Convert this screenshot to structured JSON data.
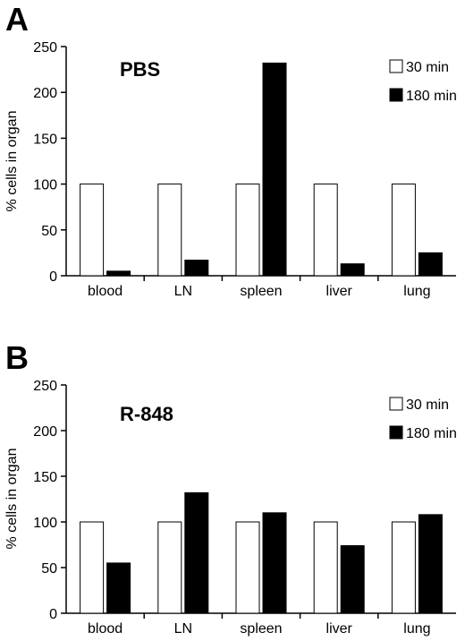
{
  "chart_data": [
    {
      "panel": "A",
      "type": "bar",
      "title": "PBS",
      "ylabel": "% cells in organ",
      "xlabel": "",
      "ylim": [
        0,
        250
      ],
      "yticks": [
        0,
        50,
        100,
        150,
        200,
        250
      ],
      "categories": [
        "blood",
        "LN",
        "spleen",
        "liver",
        "lung"
      ],
      "series": [
        {
          "name": "30 min",
          "color": "#ffffff",
          "values": [
            100,
            100,
            100,
            100,
            100
          ]
        },
        {
          "name": "180 min",
          "color": "#000000",
          "values": [
            5,
            17,
            232,
            13,
            25
          ]
        }
      ],
      "grid": false,
      "legend_position": "top-right"
    },
    {
      "panel": "B",
      "type": "bar",
      "title": "R-848",
      "ylabel": "% cells in organ",
      "xlabel": "",
      "ylim": [
        0,
        250
      ],
      "yticks": [
        0,
        50,
        100,
        150,
        200,
        250
      ],
      "categories": [
        "blood",
        "LN",
        "spleen",
        "liver",
        "lung"
      ],
      "series": [
        {
          "name": "30 min",
          "color": "#ffffff",
          "values": [
            100,
            100,
            100,
            100,
            100
          ]
        },
        {
          "name": "180 min",
          "color": "#000000",
          "values": [
            55,
            132,
            110,
            74,
            108
          ]
        }
      ],
      "grid": false,
      "legend_position": "top-right"
    }
  ]
}
